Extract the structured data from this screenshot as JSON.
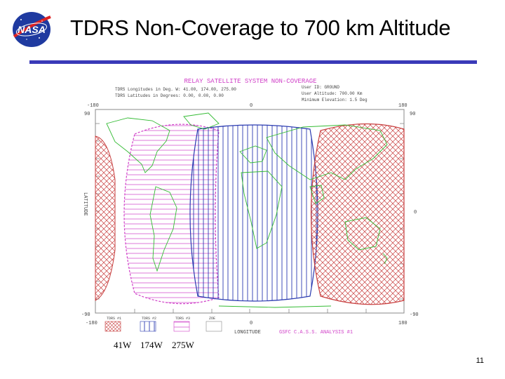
{
  "slide": {
    "title": "TDRS Non-Coverage to 700 km Altitude",
    "page_number": "11",
    "logo_text": "NASA",
    "rule_color": "#3a3ab8"
  },
  "figure": {
    "header": "RELAY SATELLITE SYSTEM NON-COVERAGE",
    "info_left_1": "TDRS Longitudes in Deg. W: 41.00, 174.00, 275.00",
    "info_left_2": "TDRS Latitudes in Degrees: 0.00, 0.00, 0.00",
    "info_right_1": "User ID: GROUND",
    "info_right_2": "User Altitude: 700.00 Km",
    "info_right_3": "Minimum Elevation: 1.5 Deg",
    "x_tick_left": "-180",
    "x_tick_mid": "0",
    "x_tick_right": "180",
    "y_tick_top": "90",
    "y_tick_mid": "0",
    "y_tick_bottom": "-90",
    "ylabel": "LATITUDE",
    "xlabel": "LONGITUDE",
    "legend": [
      "TDRS #1",
      "TDRS #2",
      "TDRS #3",
      "ZOE"
    ],
    "footer_right": "GSFC C.A.S.S. ANALYSIS #1",
    "colors": {
      "tdrs1": "#c84040",
      "tdrs2": "#2a3ab0",
      "tdrs3": "#d040c8",
      "land": "#33bb33"
    }
  },
  "labels": {
    "sat1": "41W",
    "sat2": "174W",
    "sat3": "275W"
  }
}
